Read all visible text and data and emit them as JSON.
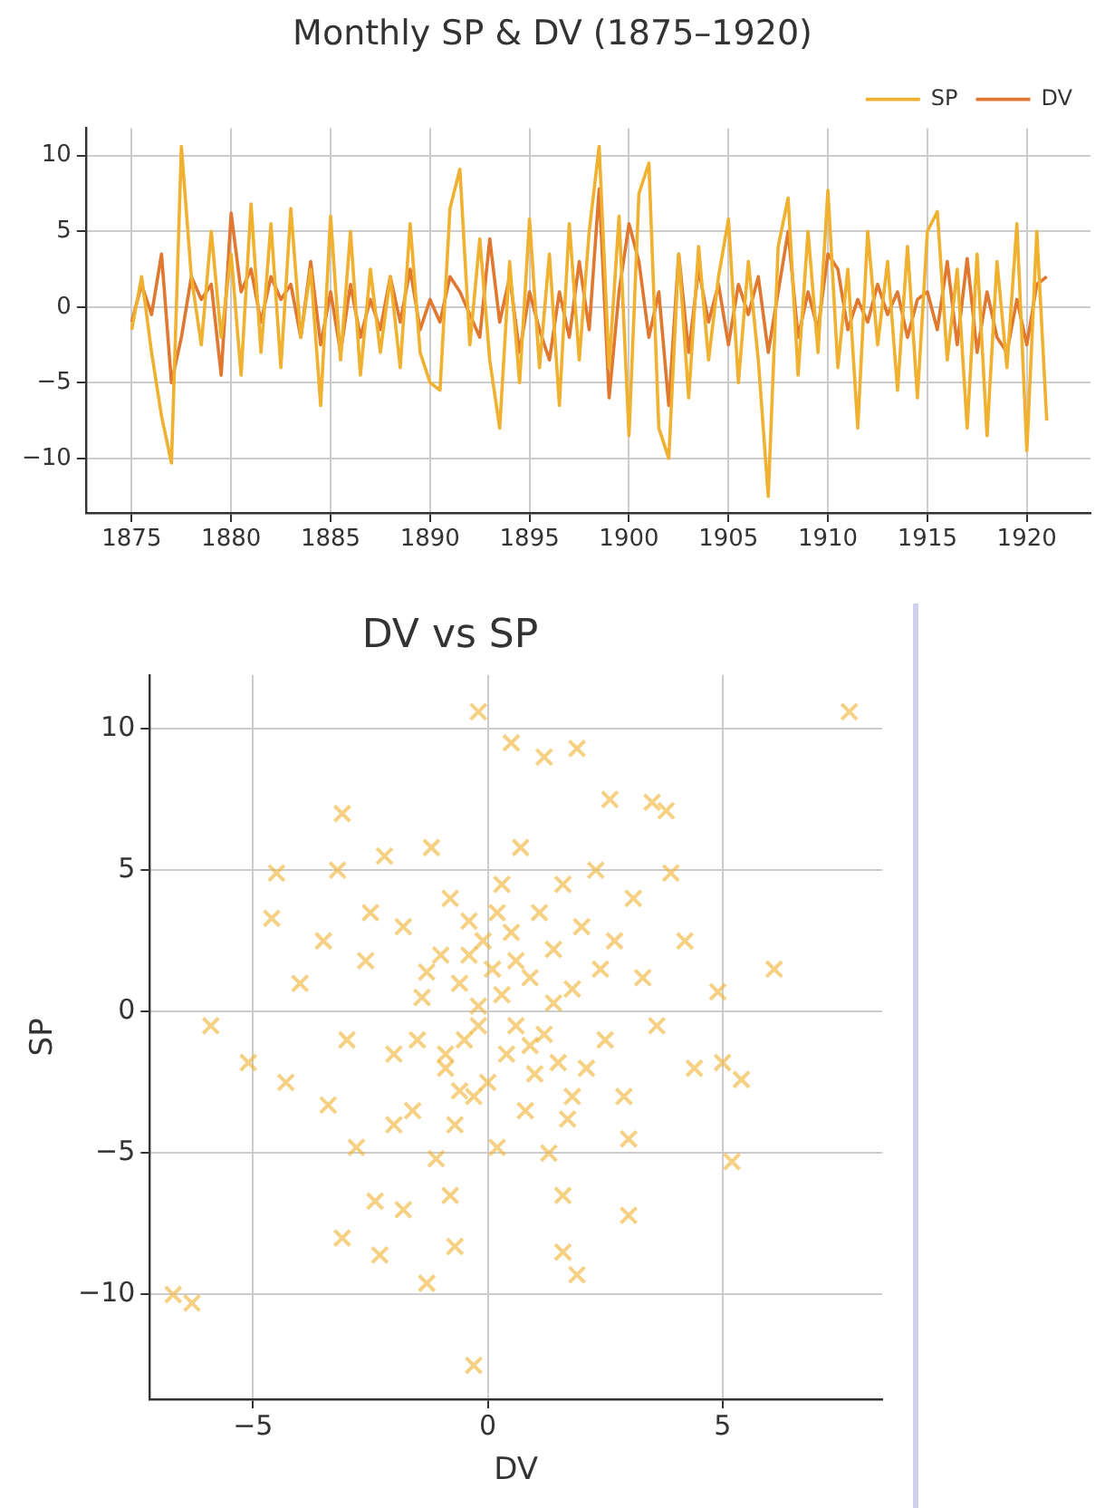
{
  "chart_data": [
    {
      "type": "line",
      "title": "Monthly SP & DV (1875–1920)",
      "x": [
        1875.0,
        1875.5,
        1876.0,
        1876.5,
        1877.0,
        1877.5,
        1878.0,
        1878.5,
        1879.0,
        1879.5,
        1880.0,
        1880.5,
        1881.0,
        1881.5,
        1882.0,
        1882.5,
        1883.0,
        1883.5,
        1884.0,
        1884.5,
        1885.0,
        1885.5,
        1886.0,
        1886.5,
        1887.0,
        1887.5,
        1888.0,
        1888.5,
        1889.0,
        1889.5,
        1890.0,
        1890.5,
        1891.0,
        1891.5,
        1892.0,
        1892.5,
        1893.0,
        1893.5,
        1894.0,
        1894.5,
        1895.0,
        1895.5,
        1896.0,
        1896.5,
        1897.0,
        1897.5,
        1898.0,
        1898.5,
        1899.0,
        1899.5,
        1900.0,
        1900.5,
        1901.0,
        1901.5,
        1902.0,
        1902.5,
        1903.0,
        1903.5,
        1904.0,
        1904.5,
        1905.0,
        1905.5,
        1906.0,
        1906.5,
        1907.0,
        1907.5,
        1908.0,
        1908.5,
        1909.0,
        1909.5,
        1910.0,
        1910.5,
        1911.0,
        1911.5,
        1912.0,
        1912.5,
        1913.0,
        1913.5,
        1914.0,
        1914.5,
        1915.0,
        1915.5,
        1916.0,
        1916.5,
        1917.0,
        1917.5,
        1918.0,
        1918.5,
        1919.0,
        1919.5,
        1920.0,
        1920.5,
        1921.0
      ],
      "series": [
        {
          "name": "SP",
          "color": "#f0b030",
          "values": [
            -1.5,
            2.0,
            -3.0,
            -7.2,
            -10.3,
            10.6,
            2.0,
            -2.5,
            5.0,
            -2.0,
            3.5,
            -4.5,
            6.8,
            -3.0,
            5.5,
            -4.0,
            6.5,
            -2.0,
            2.5,
            -6.5,
            6.0,
            -3.5,
            5.0,
            -4.5,
            2.5,
            -3.0,
            2.0,
            -4.0,
            5.5,
            -3.0,
            -5.0,
            -5.5,
            6.5,
            9.1,
            -2.5,
            4.5,
            -3.5,
            -8.0,
            3.0,
            -5.0,
            5.8,
            -4.0,
            3.5,
            -6.5,
            5.5,
            -3.5,
            5.0,
            10.6,
            -4.0,
            6.0,
            -8.5,
            7.5,
            9.5,
            -8.0,
            -10.0,
            3.5,
            -6.0,
            4.0,
            -3.5,
            2.0,
            5.8,
            -5.0,
            3.0,
            -3.5,
            -12.5,
            4.0,
            7.2,
            -4.5,
            5.0,
            -3.0,
            7.7,
            -4.0,
            2.5,
            -8.0,
            5.0,
            -2.5,
            3.0,
            -5.5,
            4.0,
            -6.0,
            5.0,
            6.3,
            -3.5,
            2.5,
            -8.0,
            3.5,
            -8.5,
            3.0,
            -4.0,
            5.5,
            -9.5,
            5.0,
            -7.5
          ]
        },
        {
          "name": "DV",
          "color": "#e07830",
          "values": [
            -1.0,
            1.5,
            -0.5,
            3.5,
            -5.0,
            -2.0,
            2.0,
            0.5,
            1.5,
            -4.5,
            6.2,
            1.0,
            2.5,
            -1.0,
            2.0,
            0.5,
            1.5,
            -2.0,
            3.0,
            -2.5,
            1.0,
            -3.0,
            1.5,
            -2.0,
            0.5,
            -1.5,
            2.0,
            -1.0,
            2.5,
            -1.5,
            0.5,
            -1.0,
            2.0,
            1.0,
            -0.5,
            -2.0,
            4.5,
            -1.0,
            2.0,
            -3.0,
            1.0,
            -1.5,
            -3.5,
            1.0,
            -2.0,
            3.0,
            -1.5,
            7.8,
            -6.0,
            1.0,
            5.5,
            3.0,
            -2.0,
            1.0,
            -6.5,
            3.5,
            -3.0,
            2.5,
            -1.0,
            1.5,
            -2.5,
            1.5,
            -0.5,
            2.0,
            -3.0,
            1.0,
            5.0,
            -2.0,
            1.0,
            -1.5,
            3.5,
            2.5,
            -1.5,
            0.5,
            -1.0,
            1.5,
            -0.5,
            1.0,
            -2.0,
            0.5,
            1.0,
            -1.5,
            3.0,
            -2.5,
            3.2,
            -3.0,
            1.0,
            -2.0,
            -3.0,
            0.5,
            -2.5,
            1.5,
            2.0
          ]
        }
      ],
      "xlim": [
        1872.7,
        1923.2
      ],
      "xticks": [
        1875,
        1880,
        1885,
        1890,
        1895,
        1900,
        1905,
        1910,
        1915,
        1920
      ],
      "ylim": [
        -13.6,
        11.8
      ],
      "yticks": [
        -10,
        -5,
        0,
        5,
        10
      ],
      "grid": true,
      "legend": "top right"
    },
    {
      "type": "scatter",
      "title": "DV vs SP",
      "xlabel": "DV",
      "ylabel": "SP",
      "series": [
        {
          "color": "#f0b030",
          "x": [
            7.7,
            -0.2,
            -6.7,
            -6.3,
            -0.3,
            6.1,
            5.4,
            5.2,
            -3.1,
            0.5,
            1.9,
            1.2,
            3.8,
            3.5,
            2.6,
            -5.9,
            -4.6,
            -4.5,
            -3.1,
            -2.3,
            -1.3,
            1.9,
            4.9,
            5.0,
            3.0,
            -0.7,
            -5.1,
            -4.3,
            -4.0,
            -3.5,
            -3.4,
            -3.2,
            -2.8,
            -2.6,
            -2.4,
            -2.2,
            -2.0,
            -1.8,
            -1.6,
            -1.4,
            -1.2,
            -1.1,
            -1.0,
            -0.9,
            -0.8,
            -0.7,
            -0.6,
            -0.5,
            -0.4,
            -0.3,
            -0.2,
            -0.1,
            0.0,
            0.1,
            0.2,
            0.3,
            0.4,
            0.5,
            0.6,
            0.7,
            0.8,
            0.9,
            1.0,
            1.1,
            1.2,
            1.3,
            1.4,
            1.5,
            1.6,
            1.7,
            1.8,
            2.0,
            2.1,
            2.3,
            2.5,
            2.7,
            2.9,
            3.1,
            3.3,
            3.6,
            3.9,
            4.2,
            4.4,
            -0.9,
            -0.6,
            -1.5,
            0.3,
            0.6,
            -0.2,
            0.9,
            -1.3,
            1.4,
            -0.4,
            0.2,
            -2.0,
            1.8,
            -3.0,
            2.4,
            -2.5,
            3.0,
            -0.8,
            1.6,
            -1.8,
            1.6
          ],
          "values": [
            10.6,
            10.6,
            -10.0,
            -10.3,
            -12.5,
            1.5,
            -2.4,
            -5.3,
            7.0,
            9.5,
            9.3,
            9.0,
            7.1,
            7.4,
            7.5,
            -0.5,
            3.3,
            4.9,
            -8.0,
            -8.6,
            -9.6,
            -9.3,
            0.7,
            -1.8,
            -7.2,
            -8.3,
            -1.8,
            -2.5,
            1.0,
            2.5,
            -3.3,
            5.0,
            -4.8,
            1.8,
            -6.7,
            5.5,
            -1.5,
            3.0,
            -3.5,
            0.5,
            5.8,
            -5.2,
            2.0,
            -2.0,
            4.0,
            -4.0,
            1.0,
            -1.0,
            3.2,
            -3.0,
            0.2,
            2.5,
            -2.5,
            1.5,
            -4.8,
            4.5,
            -1.5,
            2.8,
            -0.5,
            5.8,
            -3.5,
            1.2,
            -2.2,
            3.5,
            -0.8,
            -5.0,
            2.2,
            -1.8,
            4.5,
            -3.8,
            0.8,
            3.0,
            -2.0,
            5.0,
            -1.0,
            2.5,
            -3.0,
            4.0,
            1.2,
            -0.5,
            4.9,
            2.5,
            -2.0,
            -1.5,
            -2.8,
            -1.0,
            0.6,
            1.8,
            -0.5,
            -1.2,
            1.4,
            0.3,
            2.0,
            3.5,
            -4.0,
            -3.0,
            -1.0,
            1.5,
            3.5,
            -4.5,
            -6.5,
            -6.5,
            -7.0,
            -8.5
          ]
        }
      ],
      "xlim": [
        -7.2,
        8.4
      ],
      "xticks": [
        -5,
        0,
        5
      ],
      "ylim": [
        -13.7,
        11.9
      ],
      "yticks": [
        -10,
        -5,
        0,
        5,
        10
      ],
      "grid": true,
      "marker": "cross"
    }
  ]
}
